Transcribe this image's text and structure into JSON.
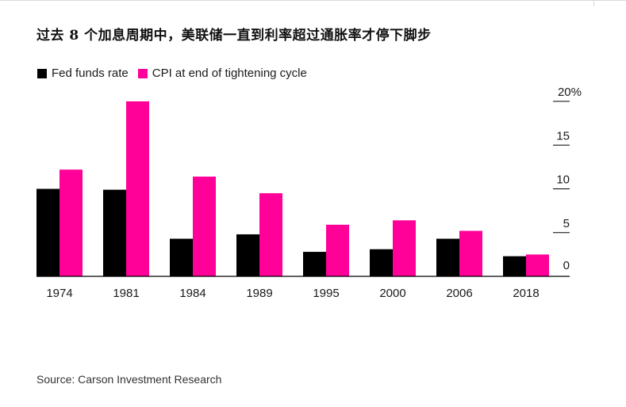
{
  "title": "过去 8 个加息周期中，美联储一直到利率超过通胀率才停下脚步",
  "source": "Source: Carson Investment Research",
  "colors": {
    "fed": "#000000",
    "cpi": "#ff0099",
    "axis": "#000000"
  },
  "chart_data": {
    "type": "bar",
    "title": "过去 8 个加息周期中，美联储一直到利率超过通胀率才停下脚步",
    "xlabel": "",
    "ylabel": "",
    "categories": [
      "1974",
      "1981",
      "1984",
      "1989",
      "1995",
      "2000",
      "2006",
      "2018"
    ],
    "series": [
      {
        "name": "Fed funds rate",
        "values": [
          10.0,
          9.9,
          4.3,
          4.8,
          2.8,
          3.1,
          4.3,
          2.3
        ]
      },
      {
        "name": "CPI at end of tightening cycle",
        "values": [
          12.2,
          20.0,
          11.4,
          9.5,
          5.9,
          6.4,
          5.2,
          2.5
        ]
      }
    ],
    "ylim": [
      0,
      20
    ],
    "yticks": [
      0,
      5,
      10,
      15,
      20
    ],
    "ytick_labels": [
      "0",
      "5",
      "10",
      "15",
      "20%"
    ],
    "legend_position": "top-left",
    "grid": false
  }
}
